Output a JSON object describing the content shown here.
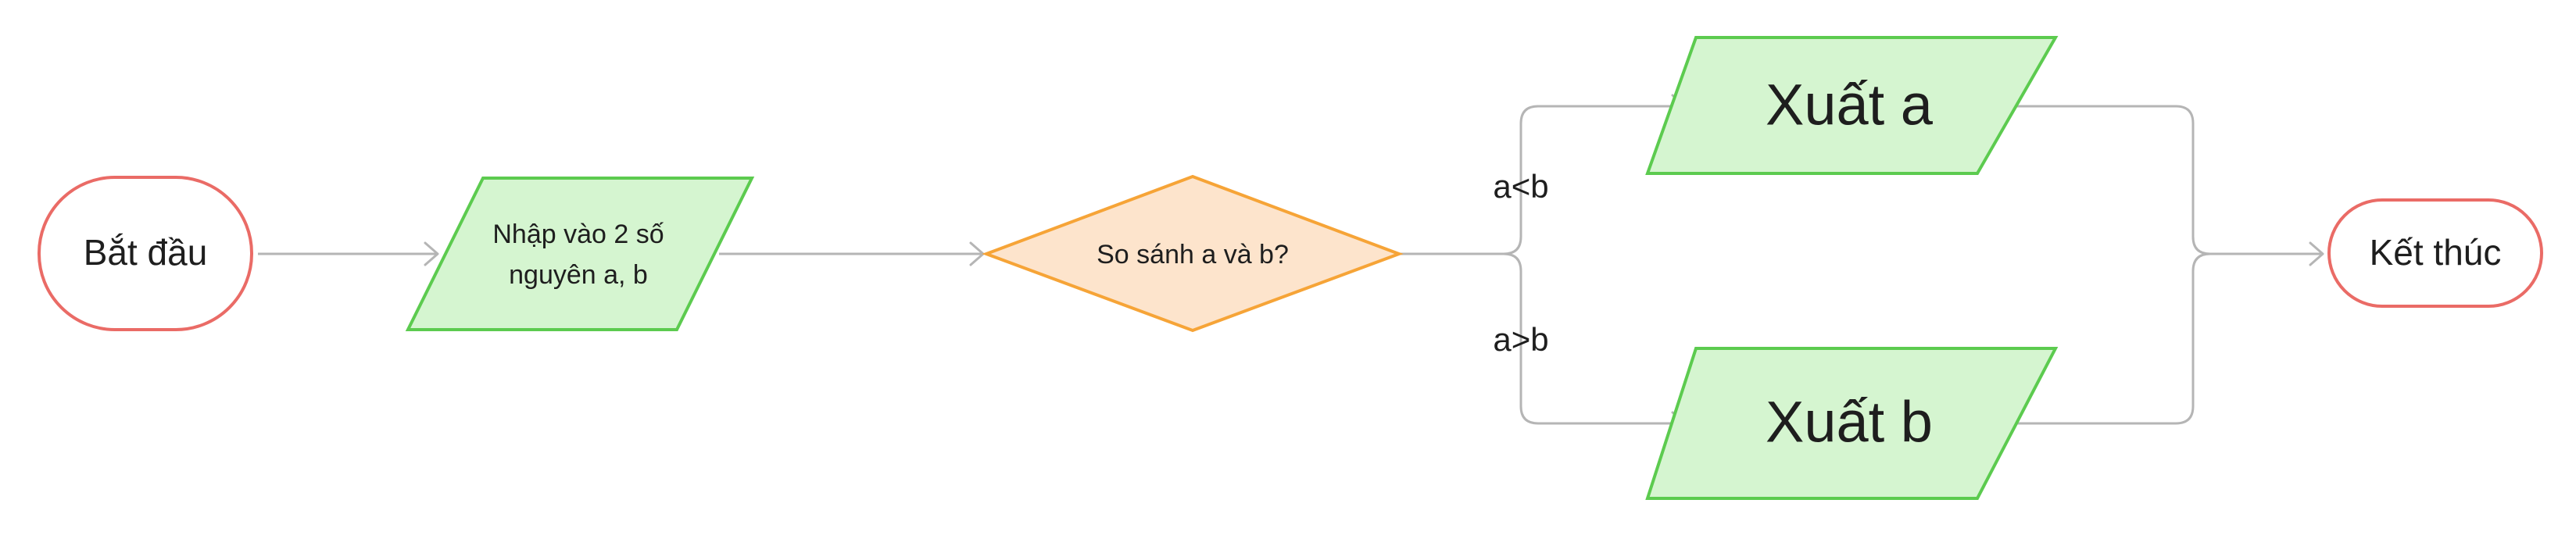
{
  "diagram": {
    "start": "Bắt đầu",
    "input_line1": "Nhập vào 2 số",
    "input_line2": "nguyên a, b",
    "decision": "So sánh a  và b?",
    "branch_less": "a<b",
    "branch_greater": "a>b",
    "output_a": "Xuất a",
    "output_b": "Xuất b",
    "end": "Kết thúc"
  },
  "colors": {
    "terminal_stroke": "#ea6b66",
    "io_fill": "#d5f5d0",
    "io_stroke": "#5ccb4f",
    "decision_fill": "#fde4cc",
    "decision_stroke": "#f6a437",
    "connector": "#b5b5b5"
  }
}
